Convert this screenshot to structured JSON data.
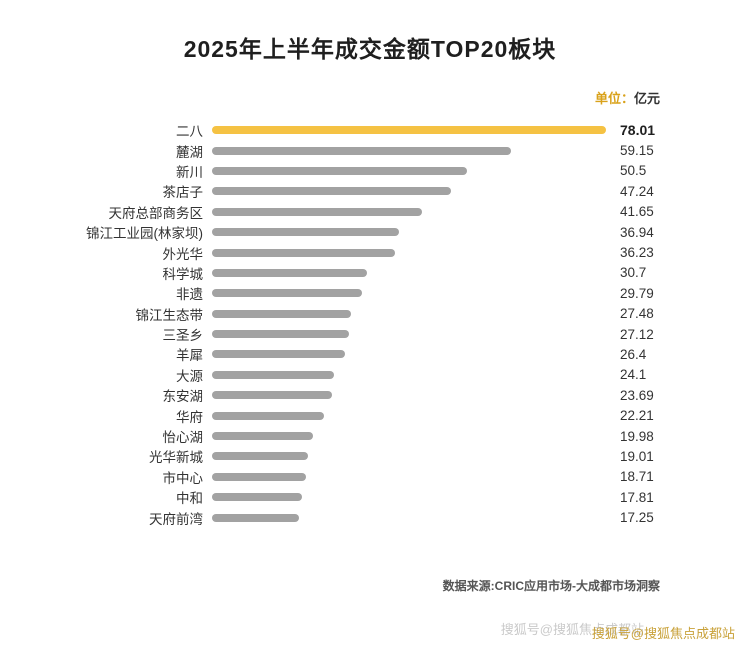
{
  "page": {
    "title": "2025年上半年成交金额TOP20板块",
    "unit_prefix": "单位：",
    "unit_value": "亿元",
    "source": "数据来源:CRIC应用市场-大成都市场洞察",
    "watermark": "搜狐号@搜狐焦点成都站"
  },
  "colors": {
    "highlight_bar": "#F5C243",
    "default_bar": "#A2A2A2",
    "watermark": "#C9A23A"
  },
  "chart_data": {
    "type": "bar",
    "orientation": "horizontal",
    "title": "2025年上半年成交金额TOP20板块",
    "unit": "亿元",
    "legend_position": "none",
    "grid": false,
    "xlim": [
      0,
      78.01
    ],
    "highlight_index": 0,
    "categories": [
      "二八",
      "麓湖",
      "新川",
      "茶店子",
      "天府总部商务区",
      "锦江工业园(林家坝)",
      "外光华",
      "科学城",
      "非遗",
      "锦江生态带",
      "三圣乡",
      "羊犀",
      "大源",
      "东安湖",
      "华府",
      "怡心湖",
      "光华新城",
      "市中心",
      "中和",
      "天府前湾"
    ],
    "values": [
      78.01,
      59.15,
      50.5,
      47.24,
      41.65,
      36.94,
      36.23,
      30.7,
      29.79,
      27.48,
      27.12,
      26.4,
      24.1,
      23.69,
      22.21,
      19.98,
      19.01,
      18.71,
      17.81,
      17.25
    ],
    "value_labels": [
      "78.01",
      "59.15",
      "50.5",
      "47.24",
      "41.65",
      "36.94",
      "36.23",
      "30.7",
      "29.79",
      "27.48",
      "27.12",
      "26.4",
      "24.1",
      "23.69",
      "22.21",
      "19.98",
      "19.01",
      "18.71",
      "17.81",
      "17.25"
    ]
  }
}
